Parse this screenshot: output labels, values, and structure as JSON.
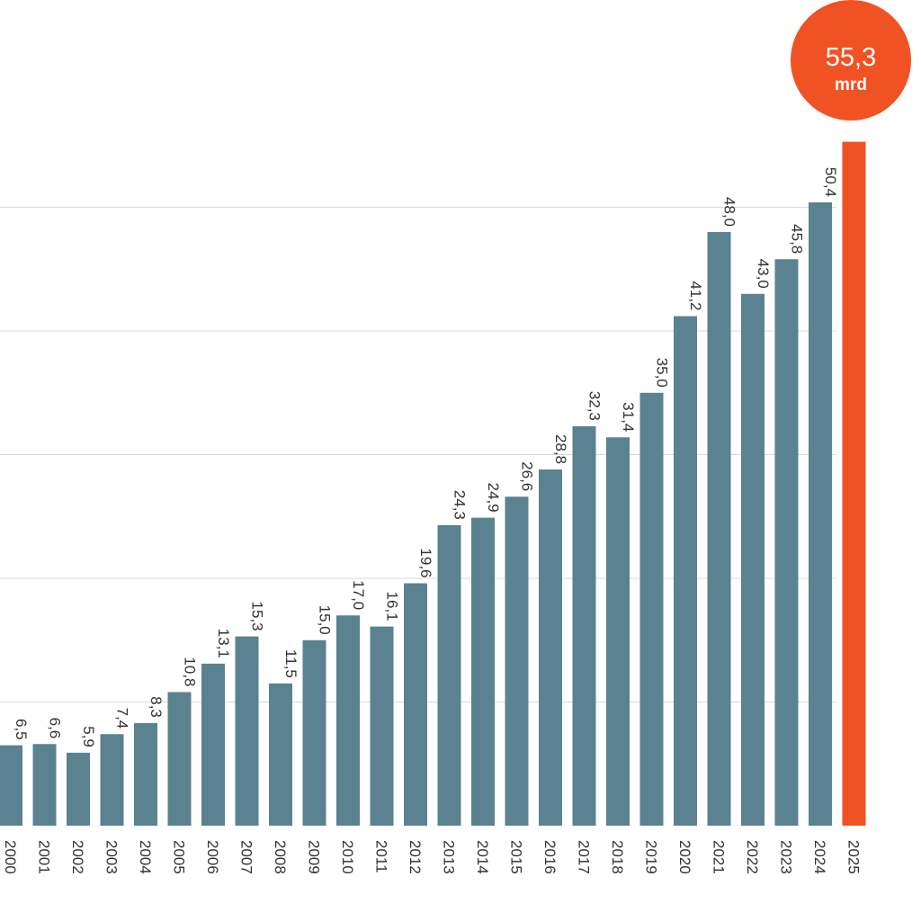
{
  "chart_data": {
    "type": "bar",
    "categories": [
      "2000",
      "2001",
      "2002",
      "2003",
      "2004",
      "2005",
      "2006",
      "2007",
      "2008",
      "2009",
      "2010",
      "2011",
      "2012",
      "2013",
      "2014",
      "2015",
      "2016",
      "2017",
      "2018",
      "2019",
      "2020",
      "2021",
      "2022",
      "2023",
      "2024",
      "2025"
    ],
    "values": [
      6.5,
      6.6,
      5.9,
      7.4,
      8.3,
      10.8,
      13.1,
      15.3,
      11.5,
      15.0,
      17.0,
      16.1,
      19.6,
      24.3,
      24.9,
      26.6,
      28.8,
      32.3,
      31.4,
      35.0,
      41.2,
      48.0,
      43.0,
      45.8,
      50.4,
      55.3
    ],
    "data_labels": [
      "6,5",
      "6,6",
      "5,9",
      "7,4",
      "8,3",
      "10,8",
      "13,1",
      "15,3",
      "11,5",
      "15,0",
      "17,0",
      "16,1",
      "19,6",
      "24,3",
      "24,9",
      "26,6",
      "28,8",
      "32,3",
      "31,4",
      "35,0",
      "41,2",
      "48,0",
      "43,0",
      "45,8",
      "50,4",
      ""
    ],
    "highlight": {
      "category": "2025",
      "value_label": "55,3",
      "unit": "mrd"
    },
    "ylim": [
      0,
      60
    ],
    "grid": true,
    "gridline_values": [
      10,
      20,
      30,
      40,
      50
    ],
    "colors": {
      "bar": "#5a8290",
      "highlight": "#f05223",
      "grid": "#d9d9d9",
      "text": "#333333"
    }
  }
}
